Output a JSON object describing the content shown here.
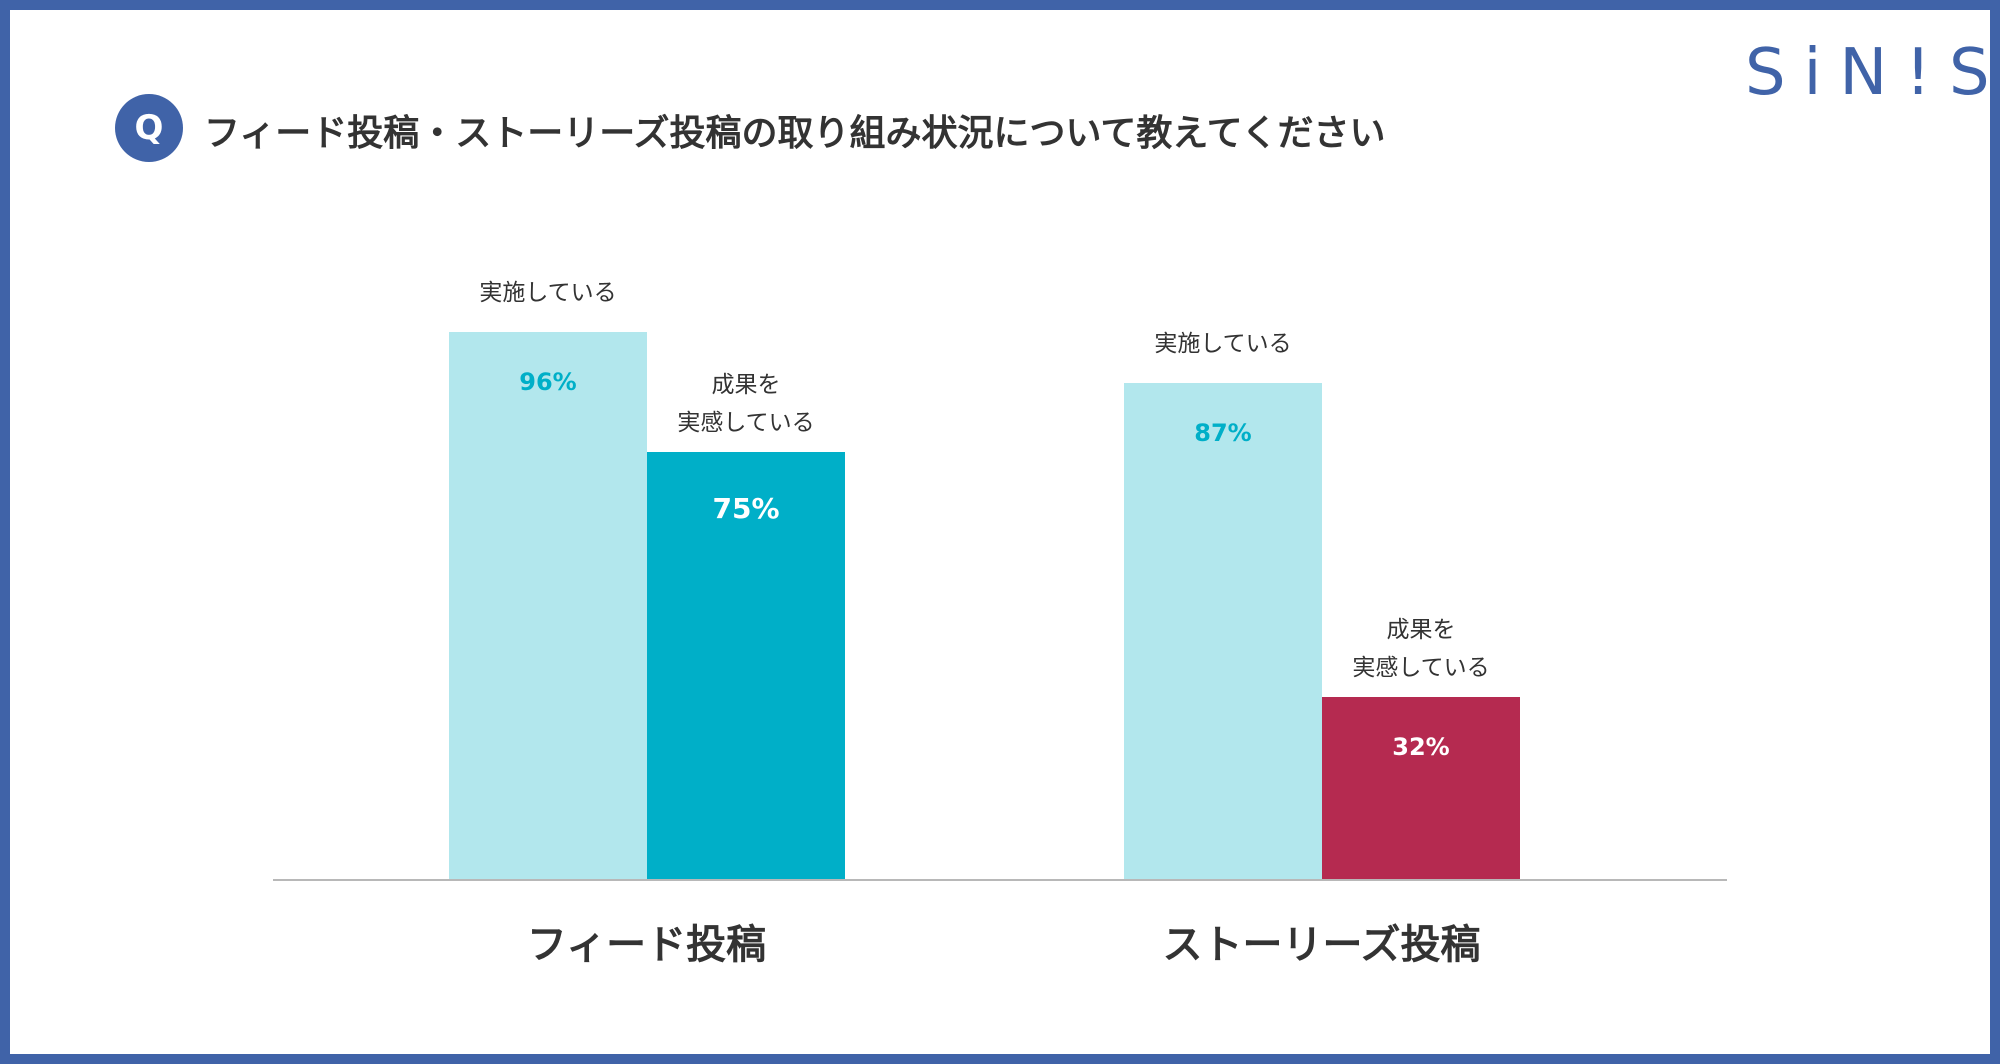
{
  "logo": "SiN!S",
  "header": {
    "q_badge": "Q",
    "title": "フィード投稿・ストーリーズ投稿の取り組み状況について教えてください"
  },
  "chart_data": {
    "type": "bar",
    "title": "フィード投稿・ストーリーズ投稿の取り組み状況について教えてください",
    "categories": [
      "フィード投稿",
      "ストーリーズ投稿"
    ],
    "ylim": [
      0,
      100
    ],
    "unit": "%",
    "series": [
      {
        "name": "実施している",
        "values": [
          96,
          87
        ],
        "labels": [
          "96%",
          "87%"
        ]
      },
      {
        "name": "成果を実感している",
        "name_lines": [
          "成果を",
          "実感している"
        ],
        "values": [
          75,
          32
        ],
        "labels": [
          "75%",
          "32%"
        ]
      }
    ],
    "colors": {
      "implemented": "#b2e7ed",
      "implemented_text": "#00afc8",
      "feed_result": "#00afc8",
      "stories_result": "#b52a50"
    }
  }
}
